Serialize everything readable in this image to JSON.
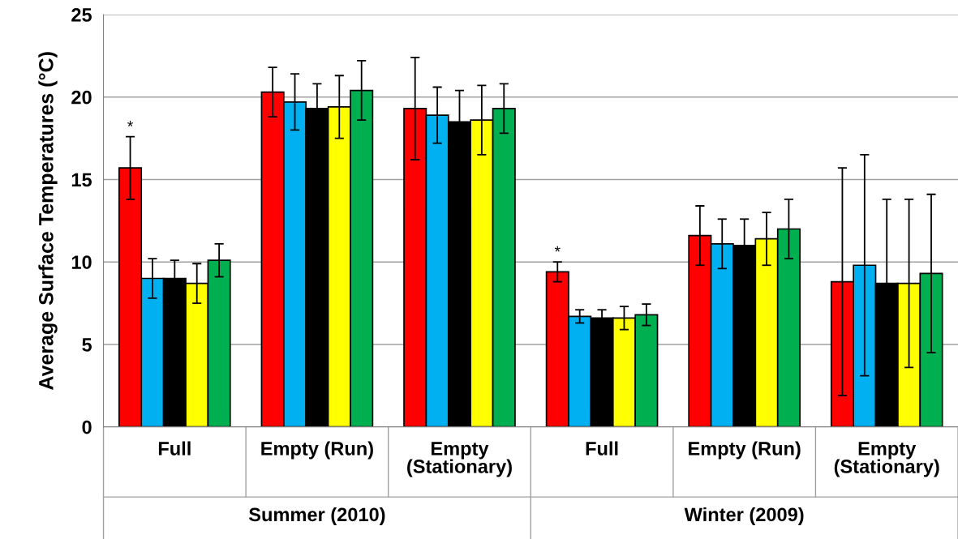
{
  "chart_data": {
    "type": "bar",
    "ylabel": "Average Surface Temperatures (°C)",
    "categories": [
      "Full",
      "Empty (Run)",
      "Empty (Stationary)",
      "Full",
      "Empty (Run)",
      "Empty (Stationary)"
    ],
    "annotations": [
      "Summer (2010)",
      "Winter (2009)"
    ],
    "series": [
      {
        "color": "#ff0000",
        "values": [
          15.7,
          20.3,
          19.3,
          9.4,
          11.6,
          8.8
        ],
        "errors": [
          1.9,
          1.5,
          3.1,
          0.6,
          1.8,
          6.9
        ],
        "value_labels": [
          "*",
          null,
          null,
          "*",
          null,
          null
        ]
      },
      {
        "color": "#00b0f0",
        "values": [
          9.0,
          19.7,
          18.9,
          6.7,
          11.1,
          9.8
        ],
        "errors": [
          1.2,
          1.7,
          1.7,
          0.4,
          1.5,
          6.7
        ]
      },
      {
        "color": "#000000",
        "values": [
          9.0,
          19.3,
          18.5,
          6.6,
          11.0,
          8.7
        ],
        "errors": [
          1.1,
          1.5,
          1.9,
          0.5,
          1.6,
          5.1
        ]
      },
      {
        "color": "#ffff00",
        "values": [
          8.7,
          19.4,
          18.6,
          6.6,
          11.4,
          8.7
        ],
        "errors": [
          1.2,
          1.9,
          2.1,
          0.7,
          1.6,
          5.1
        ]
      },
      {
        "color": "#00b050",
        "values": [
          10.1,
          20.4,
          19.3,
          6.8,
          12.0,
          9.3
        ],
        "errors": [
          1.0,
          1.8,
          1.5,
          0.65,
          1.8,
          4.8
        ]
      }
    ],
    "ylim": [
      0,
      25
    ],
    "yticks": [
      0,
      5,
      10,
      15,
      20,
      25
    ],
    "grid": "y"
  }
}
